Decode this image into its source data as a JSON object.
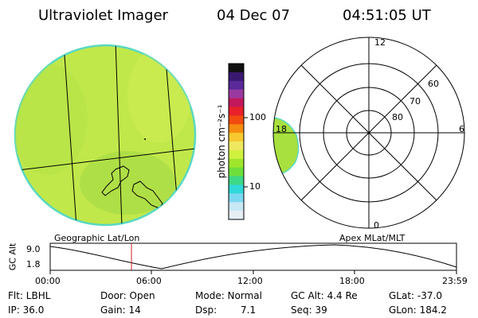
{
  "header": {
    "instrument": "Ultraviolet Imager",
    "date": "04 Dec 07",
    "time": "04:51:05 UT"
  },
  "colorbar": {
    "unit_label": "photon cm⁻²s⁻¹",
    "ticks": [
      "100",
      "10"
    ],
    "colors": [
      "#101010",
      "#3a1870",
      "#5a2a9a",
      "#9a3aa0",
      "#c2185b",
      "#e8202a",
      "#f04a10",
      "#f58c10",
      "#f8c830",
      "#eee860",
      "#d0f040",
      "#9ee62c",
      "#6ede3c",
      "#3ed888",
      "#30d8d8",
      "#7ad8f0",
      "#c8e8f4",
      "#e6eef4"
    ]
  },
  "polar_plot": {
    "mlt_labels": [
      "12",
      "18",
      "6",
      "0"
    ],
    "lat_labels": [
      "60",
      "70",
      "80"
    ]
  },
  "timeline": {
    "left_title": "Geographic Lat/Lon",
    "right_title": "Apex MLat/MLT",
    "axis_label": "GC Alt",
    "y_ticks": [
      "9.0",
      "1.8"
    ],
    "x_ticks": [
      "00:00",
      "06:00",
      "12:00",
      "18:00",
      "23:59"
    ],
    "current_time_fraction": 0.2
  },
  "info": {
    "filter": "Flt: LBHL",
    "ip": "IP: 36.0",
    "door": "Door: Open",
    "gain": "Gain: 14",
    "mode": "Mode: Normal",
    "dsp_label": "Dsp:",
    "dsp_value": "7.1",
    "gc_alt": "GC Alt: 4.4 Re",
    "seq": "Seq: 39",
    "glat": "GLat: -37.0",
    "glon": "GLon: 184.2"
  }
}
